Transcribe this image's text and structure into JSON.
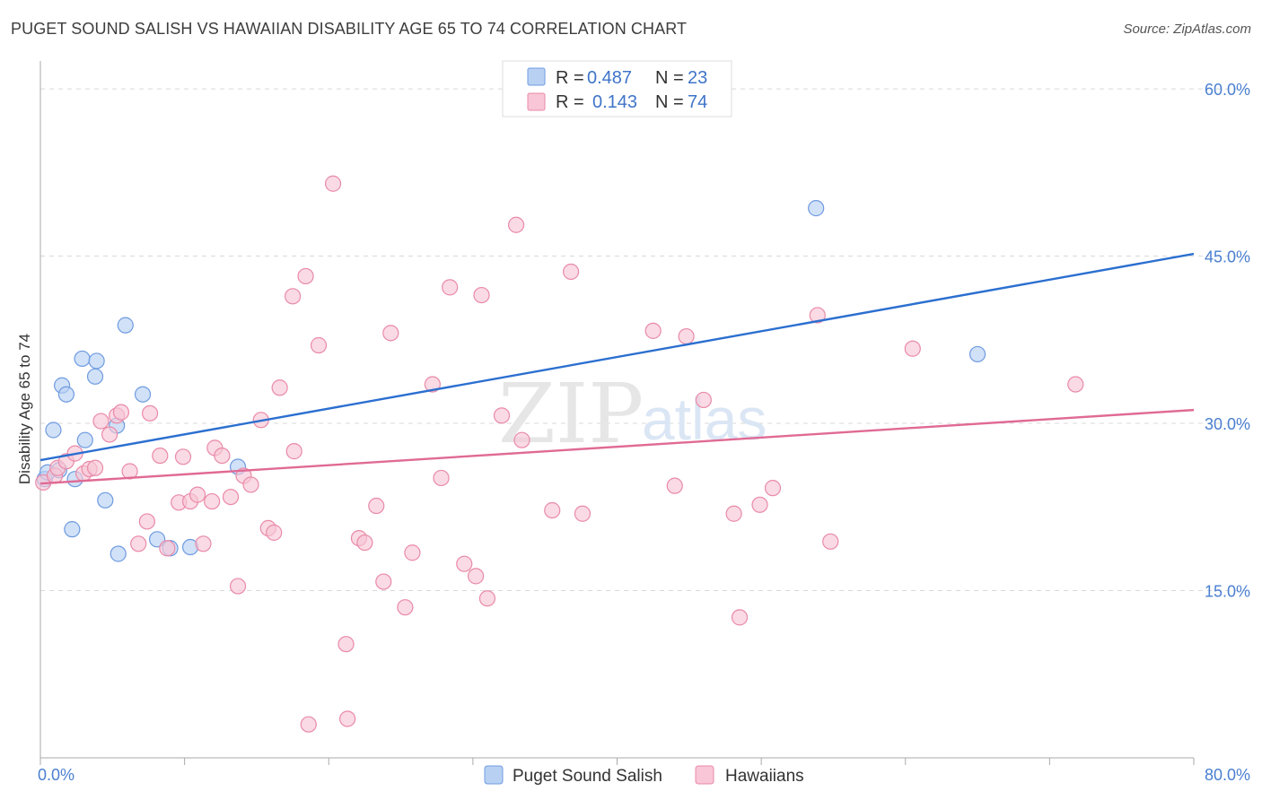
{
  "title": "PUGET SOUND SALISH VS HAWAIIAN DISABILITY AGE 65 TO 74 CORRELATION CHART",
  "source": "Source: ZipAtlas.com",
  "watermark": {
    "zip": "ZIP",
    "atlas": "atlas"
  },
  "legend": {
    "r_label": "R =",
    "n_label": "N =",
    "rows": [
      {
        "name": "Puget Sound Salish",
        "r": "0.487",
        "n": "23",
        "color": "#b8d1f3",
        "stroke": "#6f9be0"
      },
      {
        "name": "Hawaiians",
        "r": "0.143",
        "n": "74",
        "color": "#f8c6d6",
        "stroke": "#e98aa8"
      }
    ]
  },
  "chart_data": {
    "type": "scatter",
    "title": "PUGET SOUND SALISH VS HAWAIIAN DISABILITY AGE 65 TO 74 CORRELATION CHART",
    "xlabel": "",
    "ylabel": "Disability Age 65 to 74",
    "xlim": [
      0,
      80
    ],
    "ylim": [
      0,
      62.5
    ],
    "x_tick_labels": [
      "0.0%",
      "80.0%"
    ],
    "y_ticks": [
      15,
      30,
      45,
      60
    ],
    "y_tick_labels": [
      "15.0%",
      "30.0%",
      "45.0%",
      "60.0%"
    ],
    "grid": true,
    "series": [
      {
        "name": "Puget Sound Salish",
        "color": "#6f9be0",
        "fill": "#b8d1f3",
        "points": [
          [
            0.3,
            25.0
          ],
          [
            0.5,
            25.6
          ],
          [
            0.9,
            29.4
          ],
          [
            1.3,
            25.8
          ],
          [
            1.5,
            33.4
          ],
          [
            1.8,
            32.6
          ],
          [
            2.2,
            20.5
          ],
          [
            2.4,
            25.0
          ],
          [
            2.9,
            35.8
          ],
          [
            3.1,
            28.5
          ],
          [
            3.8,
            34.2
          ],
          [
            3.9,
            35.6
          ],
          [
            4.5,
            23.1
          ],
          [
            5.4,
            18.3
          ],
          [
            5.3,
            29.8
          ],
          [
            5.9,
            38.8
          ],
          [
            7.1,
            32.6
          ],
          [
            8.1,
            19.6
          ],
          [
            9.0,
            18.8
          ],
          [
            10.4,
            18.9
          ],
          [
            13.7,
            26.1
          ],
          [
            53.8,
            49.3
          ],
          [
            65.0,
            36.2
          ]
        ],
        "trend": {
          "x": [
            0,
            80
          ],
          "y": [
            26.7,
            45.2
          ]
        }
      },
      {
        "name": "Hawaiians",
        "color": "#e98aa8",
        "fill": "#f8c6d6",
        "points": [
          [
            0.2,
            24.7
          ],
          [
            1.0,
            25.3
          ],
          [
            1.2,
            26.0
          ],
          [
            1.8,
            26.6
          ],
          [
            2.4,
            27.3
          ],
          [
            3.0,
            25.5
          ],
          [
            3.4,
            25.9
          ],
          [
            3.8,
            26.0
          ],
          [
            4.2,
            30.2
          ],
          [
            4.8,
            29.0
          ],
          [
            5.3,
            30.7
          ],
          [
            5.6,
            31.0
          ],
          [
            6.2,
            25.7
          ],
          [
            6.8,
            19.2
          ],
          [
            7.4,
            21.2
          ],
          [
            7.6,
            30.9
          ],
          [
            8.3,
            27.1
          ],
          [
            8.8,
            18.8
          ],
          [
            9.6,
            22.9
          ],
          [
            9.9,
            27.0
          ],
          [
            10.4,
            23.0
          ],
          [
            10.9,
            23.6
          ],
          [
            11.3,
            19.2
          ],
          [
            11.9,
            23.0
          ],
          [
            12.1,
            27.8
          ],
          [
            12.6,
            27.1
          ],
          [
            13.2,
            23.4
          ],
          [
            13.7,
            15.4
          ],
          [
            14.1,
            25.3
          ],
          [
            14.6,
            24.5
          ],
          [
            15.3,
            30.3
          ],
          [
            15.8,
            20.6
          ],
          [
            16.2,
            20.2
          ],
          [
            16.6,
            33.2
          ],
          [
            17.5,
            41.4
          ],
          [
            17.6,
            27.5
          ],
          [
            18.4,
            43.2
          ],
          [
            18.6,
            3.0
          ],
          [
            19.3,
            37.0
          ],
          [
            20.3,
            51.5
          ],
          [
            21.2,
            10.2
          ],
          [
            21.3,
            3.5
          ],
          [
            22.1,
            19.7
          ],
          [
            22.5,
            19.3
          ],
          [
            23.3,
            22.6
          ],
          [
            23.8,
            15.8
          ],
          [
            24.3,
            38.1
          ],
          [
            25.3,
            13.5
          ],
          [
            25.8,
            18.4
          ],
          [
            27.2,
            33.5
          ],
          [
            27.8,
            25.1
          ],
          [
            28.4,
            42.2
          ],
          [
            29.4,
            17.4
          ],
          [
            30.2,
            16.3
          ],
          [
            30.6,
            41.5
          ],
          [
            31.0,
            14.3
          ],
          [
            32.0,
            30.7
          ],
          [
            33.0,
            47.8
          ],
          [
            33.4,
            28.5
          ],
          [
            35.5,
            22.2
          ],
          [
            36.8,
            43.6
          ],
          [
            37.6,
            21.9
          ],
          [
            42.5,
            38.3
          ],
          [
            44.0,
            24.4
          ],
          [
            44.8,
            37.8
          ],
          [
            46.0,
            32.1
          ],
          [
            48.1,
            21.9
          ],
          [
            48.5,
            12.6
          ],
          [
            49.9,
            22.7
          ],
          [
            50.8,
            24.2
          ],
          [
            53.9,
            39.7
          ],
          [
            54.8,
            19.4
          ],
          [
            60.5,
            36.7
          ],
          [
            71.8,
            33.5
          ]
        ],
        "trend": {
          "x": [
            0,
            80
          ],
          "y": [
            24.6,
            31.2
          ]
        }
      }
    ]
  }
}
